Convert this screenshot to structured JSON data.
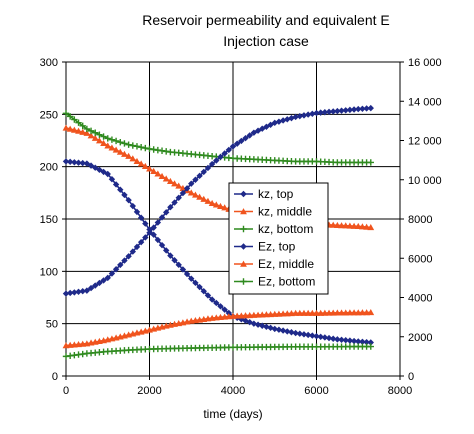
{
  "chart_data": {
    "type": "line",
    "title": "Reservoir permeability and equivalent E",
    "subtitle": "Injection case",
    "xlabel": "time (days)",
    "ylabel": "",
    "y2label": "",
    "xlim": [
      0,
      8000
    ],
    "ylim": [
      0,
      300
    ],
    "y2lim": [
      0,
      16000
    ],
    "xticks": [
      "0",
      "2000",
      "4000",
      "6000",
      "8000"
    ],
    "yticks": [
      "0",
      "50",
      "100",
      "150",
      "200",
      "250",
      "300"
    ],
    "y2ticks": [
      "0",
      "2000",
      "4000",
      "6000",
      "8000",
      "10 000",
      "12 000",
      "14 000",
      "16 000"
    ],
    "grid": true,
    "legend_position": "center-right",
    "series": [
      {
        "name": "kz, top",
        "axis": "left",
        "color": "#1f2a8a",
        "marker": "diamond",
        "x": [
          0,
          500,
          1000,
          1500,
          2000,
          2500,
          3000,
          3500,
          4000,
          4500,
          5000,
          5500,
          6000,
          6500,
          7000,
          7300
        ],
        "y": [
          205,
          203,
          193,
          168,
          140,
          115,
          93,
          73,
          57,
          50,
          45,
          41,
          38,
          35,
          33,
          32
        ]
      },
      {
        "name": "kz, middle",
        "axis": "left",
        "color": "#f0541e",
        "marker": "triangle",
        "x": [
          0,
          500,
          1000,
          1500,
          2000,
          2500,
          3000,
          3500,
          4000,
          4500,
          5000,
          5500,
          6000,
          6500,
          7000,
          7300
        ],
        "y": [
          237,
          232,
          220,
          210,
          198,
          186,
          175,
          165,
          158,
          153,
          149,
          147,
          145,
          144,
          143,
          142
        ]
      },
      {
        "name": "kz, bottom",
        "axis": "left",
        "color": "#2f8a1f",
        "marker": "plus",
        "x": [
          0,
          500,
          1000,
          1500,
          2000,
          2500,
          3000,
          3500,
          4000,
          4500,
          5000,
          5500,
          6000,
          6500,
          7000,
          7300
        ],
        "y": [
          251,
          236,
          227,
          221,
          217,
          214,
          212,
          210,
          208,
          207,
          206,
          205,
          205,
          204,
          204,
          204
        ]
      },
      {
        "name": "Ez, top",
        "axis": "right",
        "color": "#1f2a8a",
        "marker": "diamond",
        "x": [
          0,
          500,
          1000,
          1500,
          2000,
          2500,
          3000,
          3500,
          4000,
          4500,
          5000,
          5500,
          6000,
          6500,
          7000,
          7300
        ],
        "y": [
          4200,
          4350,
          5000,
          6100,
          7300,
          8600,
          9800,
          10800,
          11700,
          12400,
          12900,
          13200,
          13400,
          13500,
          13600,
          13650
        ]
      },
      {
        "name": "Ez, middle",
        "axis": "right",
        "color": "#f0541e",
        "marker": "triangle",
        "x": [
          0,
          500,
          1000,
          1500,
          2000,
          2500,
          3000,
          3500,
          4000,
          4500,
          5000,
          5500,
          6000,
          6500,
          7000,
          7300
        ],
        "y": [
          1550,
          1650,
          1850,
          2100,
          2350,
          2600,
          2800,
          2950,
          3050,
          3100,
          3150,
          3200,
          3200,
          3220,
          3230,
          3240
        ]
      },
      {
        "name": "Ez, bottom",
        "axis": "right",
        "color": "#2f8a1f",
        "marker": "plus",
        "x": [
          0,
          500,
          1000,
          1500,
          2000,
          2500,
          3000,
          3500,
          4000,
          4500,
          5000,
          5500,
          6000,
          6500,
          7000,
          7300
        ],
        "y": [
          1000,
          1150,
          1250,
          1320,
          1370,
          1400,
          1420,
          1440,
          1460,
          1470,
          1480,
          1490,
          1490,
          1495,
          1500,
          1500
        ]
      }
    ]
  }
}
